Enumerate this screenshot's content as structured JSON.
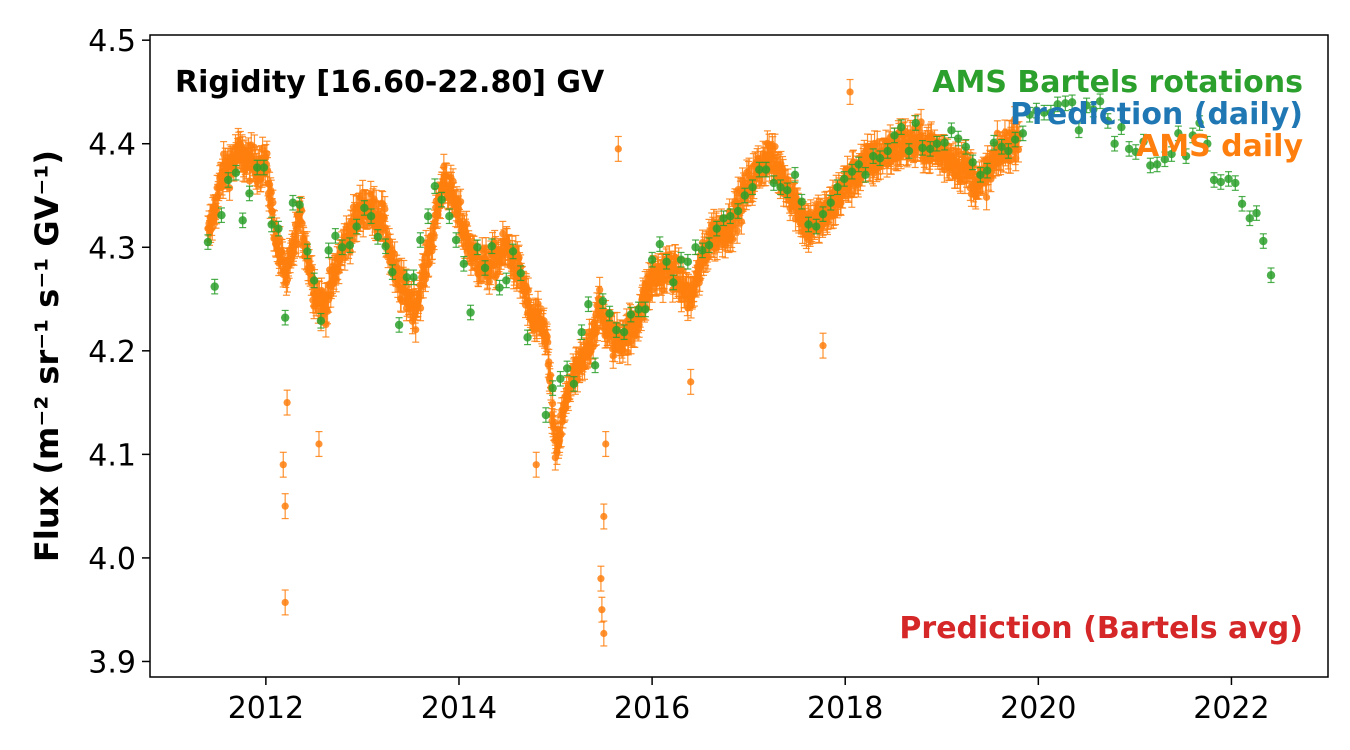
{
  "chart_data": {
    "type": "scatter",
    "title": "",
    "annotation": "Rigidity [16.60-22.80] GV",
    "xlabel": "",
    "ylabel": "Flux (m⁻² sr⁻¹ s⁻¹ GV⁻¹)",
    "xlim": [
      2010.8,
      2023.0
    ],
    "ylim": [
      3.885,
      4.505
    ],
    "x_ticks": [
      2012,
      2014,
      2016,
      2018,
      2020,
      2022
    ],
    "x_tick_labels": [
      "2012",
      "2014",
      "2016",
      "2018",
      "2020",
      "2022"
    ],
    "y_ticks": [
      3.9,
      4.0,
      4.1,
      4.2,
      4.3,
      4.4,
      4.5
    ],
    "y_tick_labels": [
      "3.9",
      "4.0",
      "4.1",
      "4.2",
      "4.3",
      "4.4",
      "4.5"
    ],
    "grid": false,
    "legend_position": "top-right",
    "legend": [
      {
        "label": "AMS Bartels rotations",
        "color": "#2ca02c"
      },
      {
        "label": "Prediction (daily)",
        "color": "#1f77b4"
      },
      {
        "label": "AMS daily",
        "color": "#ff7f0e"
      }
    ],
    "lower_legend": {
      "label": "Prediction (Bartels avg)",
      "color": "#d62728"
    },
    "series": [
      {
        "name": "AMS daily",
        "color": "#ff7f0e",
        "error": 0.012,
        "anchors": [
          [
            2011.4,
            4.31
          ],
          [
            2011.55,
            4.37
          ],
          [
            2011.72,
            4.39
          ],
          [
            2011.85,
            4.38
          ],
          [
            2012.0,
            4.38
          ],
          [
            2012.12,
            4.3
          ],
          [
            2012.22,
            4.27
          ],
          [
            2012.35,
            4.33
          ],
          [
            2012.5,
            4.26
          ],
          [
            2012.6,
            4.24
          ],
          [
            2012.8,
            4.3
          ],
          [
            2013.0,
            4.34
          ],
          [
            2013.2,
            4.33
          ],
          [
            2013.35,
            4.27
          ],
          [
            2013.55,
            4.24
          ],
          [
            2013.7,
            4.3
          ],
          [
            2013.85,
            4.37
          ],
          [
            2014.0,
            4.33
          ],
          [
            2014.15,
            4.29
          ],
          [
            2014.3,
            4.28
          ],
          [
            2014.5,
            4.3
          ],
          [
            2014.65,
            4.27
          ],
          [
            2014.75,
            4.23
          ],
          [
            2014.9,
            4.22
          ],
          [
            2015.0,
            4.1
          ],
          [
            2015.15,
            4.17
          ],
          [
            2015.3,
            4.19
          ],
          [
            2015.45,
            4.24
          ],
          [
            2015.6,
            4.21
          ],
          [
            2015.8,
            4.22
          ],
          [
            2016.0,
            4.27
          ],
          [
            2016.2,
            4.28
          ],
          [
            2016.4,
            4.25
          ],
          [
            2016.6,
            4.31
          ],
          [
            2016.8,
            4.32
          ],
          [
            2017.0,
            4.36
          ],
          [
            2017.2,
            4.39
          ],
          [
            2017.4,
            4.36
          ],
          [
            2017.6,
            4.32
          ],
          [
            2017.8,
            4.33
          ],
          [
            2018.0,
            4.36
          ],
          [
            2018.2,
            4.38
          ],
          [
            2018.4,
            4.39
          ],
          [
            2018.6,
            4.4
          ],
          [
            2018.8,
            4.4
          ],
          [
            2019.0,
            4.39
          ],
          [
            2019.2,
            4.38
          ],
          [
            2019.4,
            4.36
          ],
          [
            2019.6,
            4.39
          ],
          [
            2019.8,
            4.41
          ]
        ],
        "outliers": [
          [
            2012.2,
            3.957
          ],
          [
            2012.2,
            4.05
          ],
          [
            2012.18,
            4.09
          ],
          [
            2012.22,
            4.15
          ],
          [
            2012.55,
            4.11
          ],
          [
            2015.5,
            3.927
          ],
          [
            2015.48,
            3.95
          ],
          [
            2015.47,
            3.98
          ],
          [
            2015.5,
            4.04
          ],
          [
            2015.52,
            4.11
          ],
          [
            2015.65,
            4.395
          ],
          [
            2018.05,
            4.45
          ],
          [
            2014.8,
            4.09
          ],
          [
            2017.77,
            4.205
          ],
          [
            2016.4,
            4.17
          ]
        ]
      },
      {
        "name": "AMS Bartels rotations",
        "color": "#2ca02c",
        "error": 0.007,
        "points": [
          [
            2011.4,
            4.305
          ],
          [
            2011.47,
            4.262
          ],
          [
            2011.54,
            4.331
          ],
          [
            2011.61,
            4.365
          ],
          [
            2011.69,
            4.372
          ],
          [
            2011.76,
            4.326
          ],
          [
            2011.83,
            4.352
          ],
          [
            2011.91,
            4.377
          ],
          [
            2011.98,
            4.377
          ],
          [
            2012.06,
            4.322
          ],
          [
            2012.13,
            4.318
          ],
          [
            2012.2,
            4.232
          ],
          [
            2012.28,
            4.343
          ],
          [
            2012.35,
            4.341
          ],
          [
            2012.43,
            4.296
          ],
          [
            2012.5,
            4.268
          ],
          [
            2012.57,
            4.229
          ],
          [
            2012.65,
            4.297
          ],
          [
            2012.72,
            4.311
          ],
          [
            2012.79,
            4.3
          ],
          [
            2012.87,
            4.302
          ],
          [
            2012.94,
            4.32
          ],
          [
            2013.02,
            4.338
          ],
          [
            2013.09,
            4.33
          ],
          [
            2013.16,
            4.31
          ],
          [
            2013.24,
            4.301
          ],
          [
            2013.31,
            4.276
          ],
          [
            2013.38,
            4.225
          ],
          [
            2013.46,
            4.271
          ],
          [
            2013.53,
            4.271
          ],
          [
            2013.6,
            4.307
          ],
          [
            2013.68,
            4.33
          ],
          [
            2013.75,
            4.359
          ],
          [
            2013.82,
            4.346
          ],
          [
            2013.9,
            4.33
          ],
          [
            2013.97,
            4.307
          ],
          [
            2014.05,
            4.284
          ],
          [
            2014.12,
            4.237
          ],
          [
            2014.19,
            4.3
          ],
          [
            2014.27,
            4.28
          ],
          [
            2014.34,
            4.301
          ],
          [
            2014.42,
            4.261
          ],
          [
            2014.49,
            4.268
          ],
          [
            2014.56,
            4.296
          ],
          [
            2014.64,
            4.275
          ],
          [
            2014.71,
            4.213
          ],
          [
            2014.9,
            4.138
          ],
          [
            2014.97,
            4.164
          ],
          [
            2015.05,
            4.173
          ],
          [
            2015.12,
            4.183
          ],
          [
            2015.19,
            4.168
          ],
          [
            2015.27,
            4.218
          ],
          [
            2015.34,
            4.245
          ],
          [
            2015.41,
            4.186
          ],
          [
            2015.49,
            4.248
          ],
          [
            2015.56,
            4.236
          ],
          [
            2015.63,
            4.22
          ],
          [
            2015.71,
            4.218
          ],
          [
            2015.78,
            4.235
          ],
          [
            2015.86,
            4.24
          ],
          [
            2015.93,
            4.24
          ],
          [
            2016.0,
            4.288
          ],
          [
            2016.08,
            4.303
          ],
          [
            2016.15,
            4.286
          ],
          [
            2016.22,
            4.266
          ],
          [
            2016.3,
            4.288
          ],
          [
            2016.37,
            4.286
          ],
          [
            2016.45,
            4.3
          ],
          [
            2016.52,
            4.297
          ],
          [
            2016.59,
            4.302
          ],
          [
            2016.67,
            4.318
          ],
          [
            2016.74,
            4.328
          ],
          [
            2016.81,
            4.33
          ],
          [
            2016.89,
            4.335
          ],
          [
            2016.96,
            4.35
          ],
          [
            2017.04,
            4.358
          ],
          [
            2017.11,
            4.375
          ],
          [
            2017.18,
            4.375
          ],
          [
            2017.26,
            4.362
          ],
          [
            2017.33,
            4.358
          ],
          [
            2017.4,
            4.355
          ],
          [
            2017.48,
            4.37
          ],
          [
            2017.55,
            4.344
          ],
          [
            2017.62,
            4.322
          ],
          [
            2017.7,
            4.32
          ],
          [
            2017.77,
            4.332
          ],
          [
            2017.85,
            4.343
          ],
          [
            2017.92,
            4.358
          ],
          [
            2017.99,
            4.366
          ],
          [
            2018.07,
            4.373
          ],
          [
            2018.14,
            4.38
          ],
          [
            2018.21,
            4.37
          ],
          [
            2018.29,
            4.388
          ],
          [
            2018.36,
            4.386
          ],
          [
            2018.44,
            4.393
          ],
          [
            2018.51,
            4.408
          ],
          [
            2018.58,
            4.416
          ],
          [
            2018.66,
            4.393
          ],
          [
            2018.73,
            4.42
          ],
          [
            2018.8,
            4.396
          ],
          [
            2018.88,
            4.395
          ],
          [
            2018.95,
            4.4
          ],
          [
            2019.03,
            4.401
          ],
          [
            2019.1,
            4.413
          ],
          [
            2019.17,
            4.405
          ],
          [
            2019.25,
            4.397
          ],
          [
            2019.32,
            4.382
          ],
          [
            2019.4,
            4.37
          ],
          [
            2019.47,
            4.374
          ],
          [
            2019.54,
            4.401
          ],
          [
            2019.62,
            4.397
          ],
          [
            2019.69,
            4.393
          ],
          [
            2019.76,
            4.404
          ],
          [
            2019.84,
            4.41
          ],
          [
            2019.91,
            4.428
          ],
          [
            2019.98,
            4.432
          ],
          [
            2020.06,
            4.43
          ],
          [
            2020.13,
            4.43
          ],
          [
            2020.2,
            4.438
          ],
          [
            2020.28,
            4.439
          ],
          [
            2020.35,
            4.44
          ],
          [
            2020.42,
            4.413
          ],
          [
            2020.5,
            4.437
          ],
          [
            2020.57,
            4.433
          ],
          [
            2020.64,
            4.441
          ],
          [
            2020.72,
            4.422
          ],
          [
            2020.79,
            4.4
          ],
          [
            2020.86,
            4.416
          ],
          [
            2020.94,
            4.395
          ],
          [
            2021.01,
            4.392
          ],
          [
            2021.09,
            4.402
          ],
          [
            2021.16,
            4.379
          ],
          [
            2021.23,
            4.38
          ],
          [
            2021.31,
            4.385
          ],
          [
            2021.38,
            4.39
          ],
          [
            2021.45,
            4.41
          ],
          [
            2021.53,
            4.388
          ],
          [
            2021.6,
            4.408
          ],
          [
            2021.67,
            4.42
          ],
          [
            2021.75,
            4.4
          ],
          [
            2021.82,
            4.365
          ],
          [
            2021.89,
            4.363
          ],
          [
            2021.97,
            4.366
          ],
          [
            2022.04,
            4.362
          ],
          [
            2022.11,
            4.342
          ],
          [
            2022.19,
            4.328
          ],
          [
            2022.26,
            4.333
          ],
          [
            2022.33,
            4.306
          ],
          [
            2022.41,
            4.273
          ]
        ]
      }
    ]
  }
}
